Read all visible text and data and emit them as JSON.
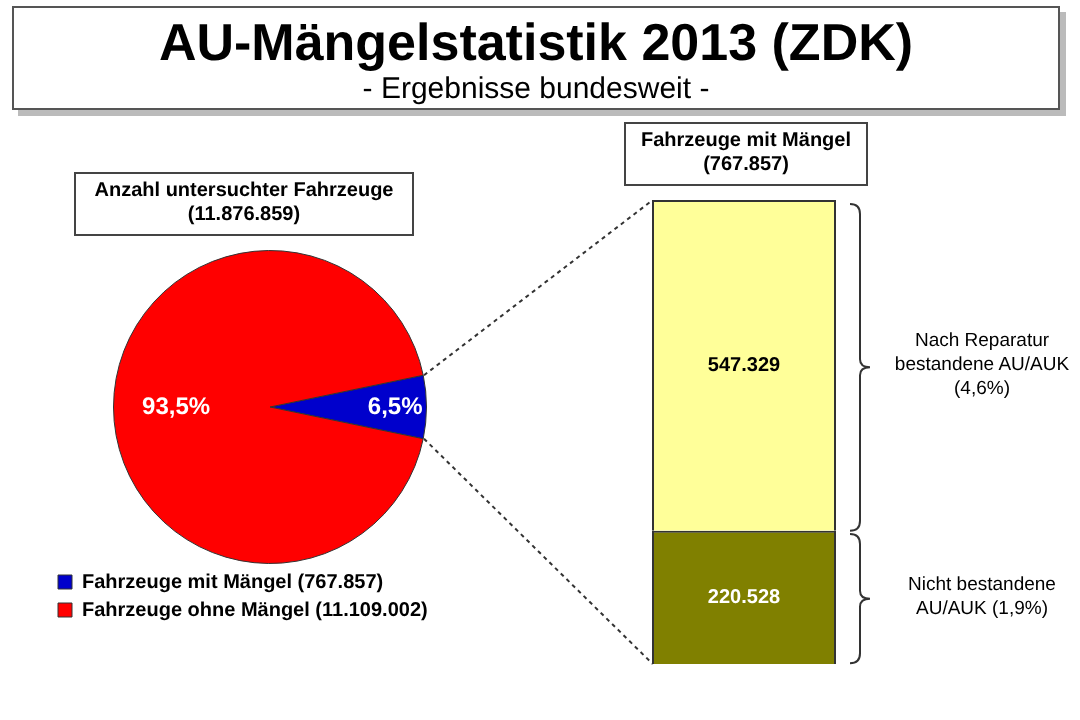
{
  "chart_data": [
    {
      "type": "pie",
      "title": "AU-Mängelstatistik 2013 (ZDK)",
      "subtitle": "- Ergebnisse bundesweit -",
      "annotations": [
        "Anzahl untersuchter Fahrzeuge (11.876.859)"
      ],
      "categories": [
        "Fahrzeuge mit Mängel (767.857)",
        "Fahrzeuge ohne Mängel (11.109.002)"
      ],
      "values": [
        6.5,
        93.5
      ],
      "colors": [
        "#0000cc",
        "#ff0000"
      ],
      "value_labels": [
        "6,5%",
        "93,5%"
      ],
      "legend": "bottom left"
    },
    {
      "type": "bar",
      "stacked": true,
      "title": "Fahrzeuge mit Mängel (767.857)",
      "categories": [
        null
      ],
      "annotations": [
        "Nicht bestandene AU/AUK (1,9%)",
        "Nach Reparatur bestandene AU/AUK (4,6%)"
      ],
      "series": [
        {
          "color": "#808000",
          "values": [
            220528
          ],
          "value_labels": [
            "220.528"
          ]
        },
        {
          "color": "#ffff99",
          "values": [
            547329
          ],
          "value_labels": [
            "547.329"
          ]
        }
      ]
    }
  ]
}
